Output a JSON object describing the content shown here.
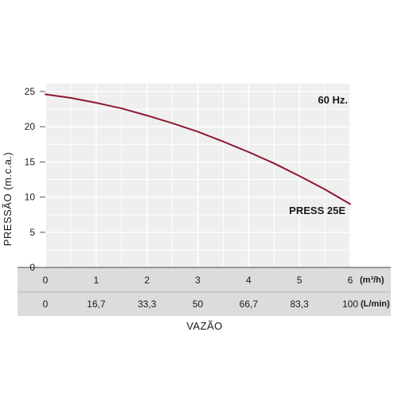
{
  "chart_data": {
    "type": "line",
    "xlabel": "VAZÃO",
    "ylabel": "PRESSÃO (m.c.a.)",
    "frequency_label": "60 Hz.",
    "x_units": [
      "(m³/h)",
      "(L/min)"
    ],
    "xlim": [
      0,
      6
    ],
    "ylim": [
      0,
      25
    ],
    "x_ticks": [
      "0",
      "1",
      "2",
      "3",
      "4",
      "5",
      "6"
    ],
    "x2_ticks": [
      "0",
      "16,7",
      "33,3",
      "50",
      "66,7",
      "83,3",
      "100"
    ],
    "y_ticks": [
      "0",
      "5",
      "10",
      "15",
      "20",
      "25"
    ],
    "grid": true,
    "series": [
      {
        "name": "PRESS 25E",
        "color": "#8b1a2f",
        "x": [
          0,
          0.5,
          1,
          1.5,
          2,
          2.5,
          3,
          3.5,
          4,
          4.5,
          5,
          5.5,
          6
        ],
        "y": [
          24.6,
          24.1,
          23.4,
          22.6,
          21.6,
          20.5,
          19.3,
          17.9,
          16.4,
          14.8,
          13.0,
          11.1,
          9.0
        ]
      }
    ]
  }
}
